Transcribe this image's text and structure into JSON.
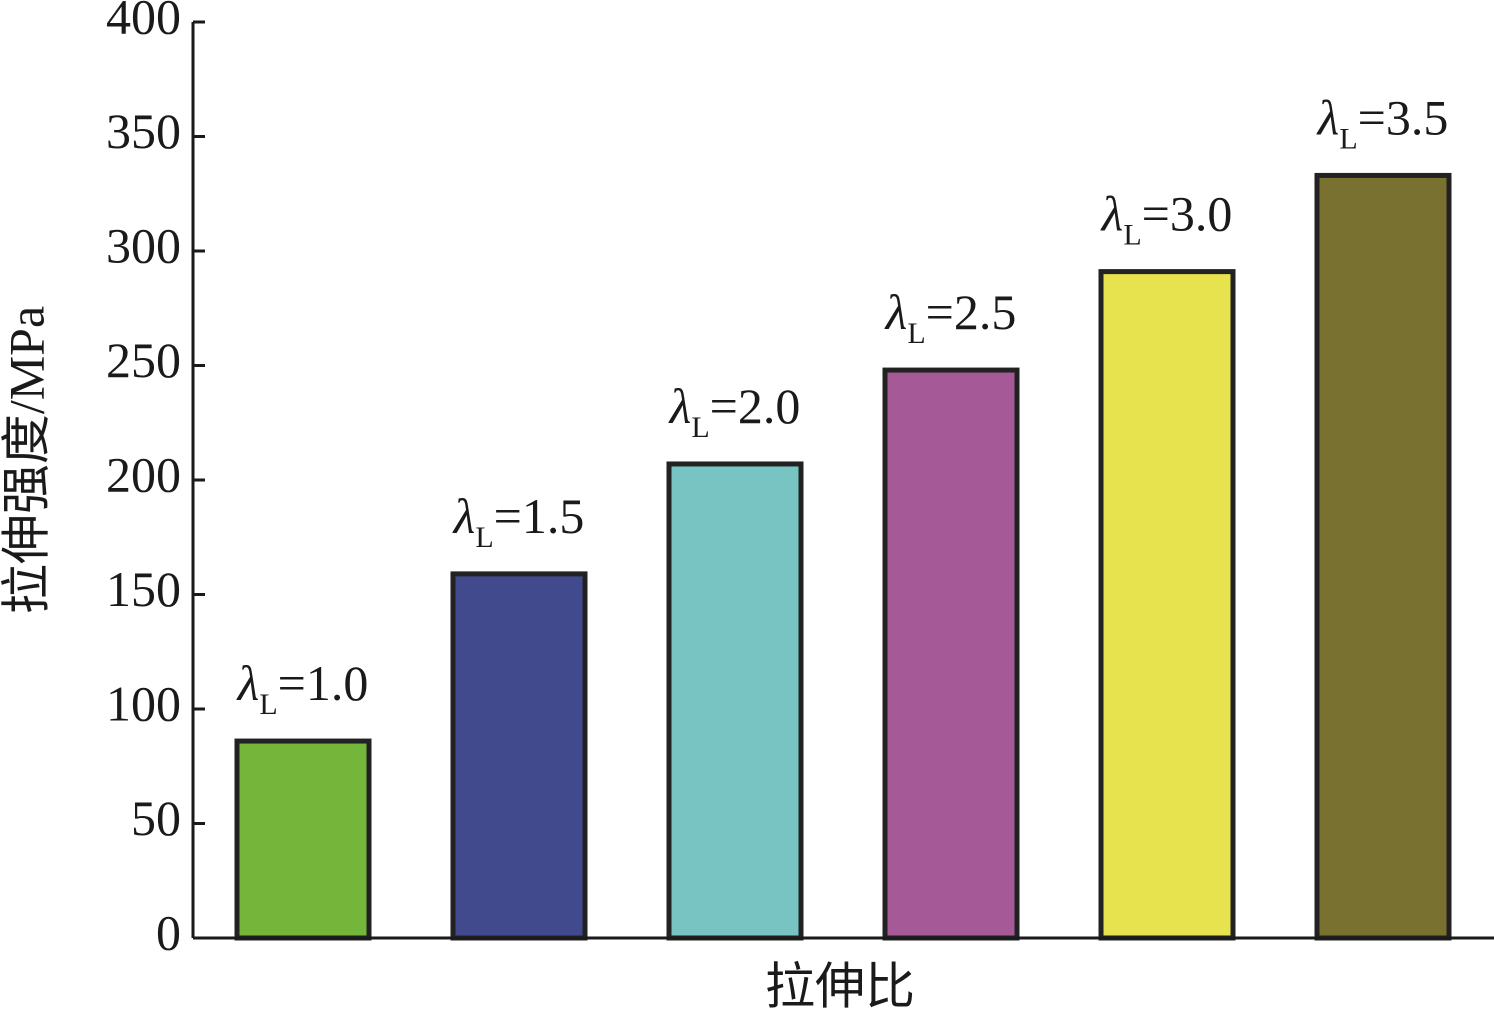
{
  "chart_data": {
    "type": "bar",
    "x_label": "拉伸比",
    "y_label": "拉伸强度/MPa",
    "categories": [
      "λL=1.0",
      "λL=1.5",
      "λL=2.0",
      "λL=2.5",
      "λL=3.0",
      "λL=3.5"
    ],
    "values": [
      86,
      159,
      207,
      248,
      291,
      333
    ],
    "colors": [
      "#74b63a",
      "#424a8e",
      "#78c4c3",
      "#a65997",
      "#e6e34e",
      "#797130"
    ],
    "ylim": [
      0,
      400
    ],
    "yticks": [
      0,
      50,
      100,
      150,
      200,
      250,
      300,
      350,
      400
    ]
  }
}
